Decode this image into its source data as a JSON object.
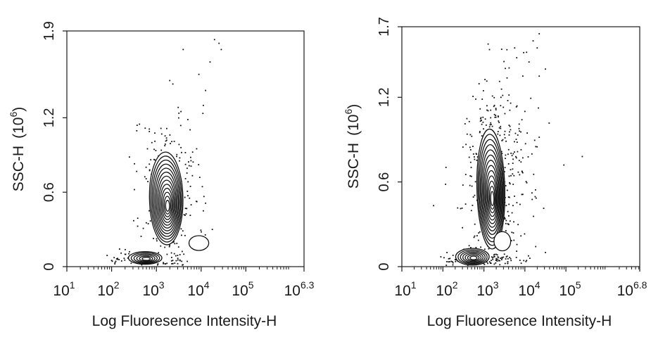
{
  "chart_data": [
    {
      "type": "scatter",
      "subtype": "flow-cytometry contour plot with outlier dots",
      "xlabel": "Log Fluoresence Intensity-H",
      "ylabel": "SSC-H (10^6)",
      "ylabel_main": "SSC-H",
      "ylabel_unit_base": "10",
      "ylabel_unit_exp": "6",
      "x_scale": "log10",
      "xlim": [
        1,
        6.3
      ],
      "ylim": [
        0,
        1.9
      ],
      "x_ticks": [
        {
          "value": 1,
          "base": "10",
          "exp": "1"
        },
        {
          "value": 2,
          "base": "10",
          "exp": "2"
        },
        {
          "value": 3,
          "base": "10",
          "exp": "3"
        },
        {
          "value": 4,
          "base": "10",
          "exp": "4"
        },
        {
          "value": 5,
          "base": "10",
          "exp": "5"
        },
        {
          "value": 6.3,
          "base": "10",
          "exp": "6.3"
        }
      ],
      "y_ticks": [
        {
          "value": 0,
          "label": "0"
        },
        {
          "value": 0.6,
          "label": "0.6"
        },
        {
          "value": 1.2,
          "label": "1.2"
        },
        {
          "value": 1.9,
          "label": "1.9"
        }
      ],
      "populations": [
        {
          "name": "main",
          "cx": 3.22,
          "cy": 0.55,
          "sx": 0.22,
          "sy": 0.22,
          "rot": 0.05,
          "levels": 13
        },
        {
          "name": "low",
          "cx": 2.75,
          "cy": 0.07,
          "sx": 0.22,
          "sy": 0.03,
          "rot": 0,
          "levels": 6
        },
        {
          "name": "side",
          "cx": 3.95,
          "cy": 0.19,
          "sx": 0.13,
          "sy": 0.035,
          "rot": 0,
          "levels": 1
        }
      ],
      "cloud": {
        "cx": 3.3,
        "cy": 0.6,
        "sx": 0.32,
        "sy": 0.32,
        "seed": 11,
        "n": 260
      },
      "outliers": [
        [
          3.3,
          1.5
        ],
        [
          3.6,
          1.75
        ],
        [
          3.95,
          1.55
        ],
        [
          4.2,
          1.65
        ],
        [
          4.3,
          1.83
        ],
        [
          4.4,
          1.8
        ],
        [
          4.45,
          1.75
        ],
        [
          4.1,
          1.42
        ],
        [
          4.05,
          1.3
        ],
        [
          3.55,
          1.25
        ],
        [
          2.3,
          0.1
        ],
        [
          1.9,
          0.09
        ],
        [
          2.0,
          0.05
        ],
        [
          2.4,
          0.12
        ],
        [
          3.9,
          0.95
        ],
        [
          2.8,
          0.95
        ],
        [
          2.9,
          1.0
        ],
        [
          4.05,
          0.45
        ],
        [
          4.25,
          0.3
        ]
      ],
      "grid": false
    },
    {
      "type": "scatter",
      "subtype": "flow-cytometry contour plot with outlier dots",
      "xlabel": "Log Fluoresence Intensity-H",
      "ylabel": "SSC-H (10^6)",
      "ylabel_main": "SSC-H",
      "ylabel_unit_base": "10",
      "ylabel_unit_exp": "6",
      "x_scale": "log10",
      "xlim": [
        1,
        6.8
      ],
      "ylim": [
        0,
        1.7
      ],
      "x_ticks": [
        {
          "value": 1,
          "base": "10",
          "exp": "1"
        },
        {
          "value": 2,
          "base": "10",
          "exp": "2"
        },
        {
          "value": 3,
          "base": "10",
          "exp": "3"
        },
        {
          "value": 4,
          "base": "10",
          "exp": "4"
        },
        {
          "value": 5,
          "base": "10",
          "exp": "5"
        },
        {
          "value": 6.8,
          "base": "10",
          "exp": "6.8"
        }
      ],
      "y_ticks": [
        {
          "value": 0,
          "label": "0"
        },
        {
          "value": 0.6,
          "label": "0.6"
        },
        {
          "value": 1.2,
          "label": "1.2"
        },
        {
          "value": 1.7,
          "label": "1.7"
        }
      ],
      "populations": [
        {
          "name": "main",
          "cx": 3.17,
          "cy": 0.55,
          "sx": 0.2,
          "sy": 0.25,
          "rot": 0.08,
          "levels": 13
        },
        {
          "name": "low",
          "cx": 2.72,
          "cy": 0.07,
          "sx": 0.24,
          "sy": 0.035,
          "rot": 0,
          "levels": 7
        },
        {
          "name": "side",
          "cx": 3.45,
          "cy": 0.18,
          "sx": 0.12,
          "sy": 0.04,
          "rot": 0,
          "levels": 1
        }
      ],
      "cloud": {
        "cx": 3.3,
        "cy": 0.62,
        "sx": 0.42,
        "sy": 0.38,
        "seed": 23,
        "n": 420
      },
      "outliers": [
        [
          4.2,
          1.6
        ],
        [
          4.3,
          1.55
        ],
        [
          4.35,
          1.65
        ],
        [
          4.1,
          1.45
        ],
        [
          3.75,
          1.55
        ],
        [
          3.8,
          1.48
        ],
        [
          3.95,
          1.35
        ],
        [
          5.4,
          0.78
        ],
        [
          4.95,
          0.72
        ],
        [
          4.5,
          0.1
        ],
        [
          2.3,
          0.05
        ],
        [
          2.1,
          0.1
        ],
        [
          1.95,
          0.07
        ],
        [
          2.5,
          0.12
        ],
        [
          2.9,
          0.95
        ],
        [
          4.35,
          1.35
        ],
        [
          4.5,
          1.4
        ],
        [
          4.0,
          1.1
        ]
      ],
      "grid": false
    }
  ]
}
